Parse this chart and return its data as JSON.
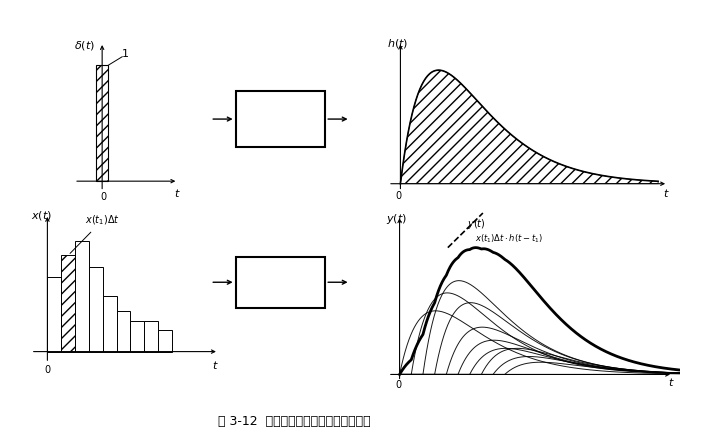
{
  "fig_width": 7.01,
  "fig_height": 4.41,
  "dpi": 100,
  "background_color": "#ffffff",
  "caption": "图 3-12  单位脉冲响应和任意输入的响应",
  "caption_fontsize": 9,
  "label_fontsize": 8,
  "annotation_fontsize": 7,
  "bar_heights": [
    0.78,
    1.0,
    1.15,
    0.88,
    0.58,
    0.42,
    0.32,
    0.32,
    0.22,
    0.0
  ],
  "bar_width": 0.25,
  "shifts": [
    0.0,
    0.25,
    0.5,
    0.75,
    1.0,
    1.25,
    1.5,
    1.75,
    2.0,
    2.25
  ],
  "amps": [
    0.78,
    1.0,
    1.15,
    0.88,
    0.58,
    0.42,
    0.32,
    0.32,
    0.22,
    0.15
  ]
}
